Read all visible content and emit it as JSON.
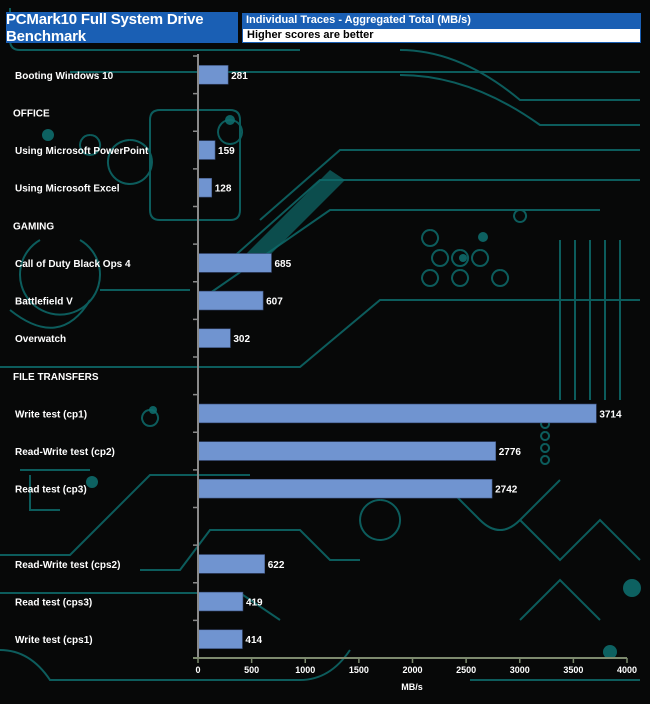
{
  "header": {
    "title": "PCMark10 Full System Drive Benchmark",
    "subtitle": "Individual Traces - Aggregated Total (MB/s)",
    "note": "Higher scores are better"
  },
  "colors": {
    "bar": "#7094d0",
    "header_blue": "#1a5fb4",
    "background": "#070808",
    "circuit": "#0e6b6b"
  },
  "chart_data": {
    "type": "bar",
    "orientation": "horizontal",
    "title": "PCMark10 Full System Drive Benchmark",
    "subtitle": "Individual Traces - Aggregated Total (MB/s)",
    "note": "Higher scores are better",
    "xlabel": "MB/s",
    "ylabel": "",
    "xlim": [
      0,
      4000
    ],
    "xticks": [
      0,
      500,
      1000,
      1500,
      2000,
      2500,
      3000,
      3500,
      4000
    ],
    "grid": false,
    "legend": "none",
    "categories": [
      "Booting Windows 10",
      "OFFICE",
      "Using Microsoft PowerPoint",
      "Using Microsoft Excel",
      "GAMING",
      "Call of Duty Black Ops 4",
      "Battlefield V",
      "Overwatch",
      "FILE TRANSFERS",
      "Write test (cp1)",
      "Read-Write test (cp2)",
      "Read test (cp3)",
      "",
      "Read-Write test (cps2)",
      "Read test (cps3)",
      "Write test (cps1)"
    ],
    "values": [
      281,
      null,
      159,
      128,
      null,
      685,
      607,
      302,
      null,
      3714,
      2776,
      2742,
      null,
      622,
      419,
      414
    ]
  }
}
